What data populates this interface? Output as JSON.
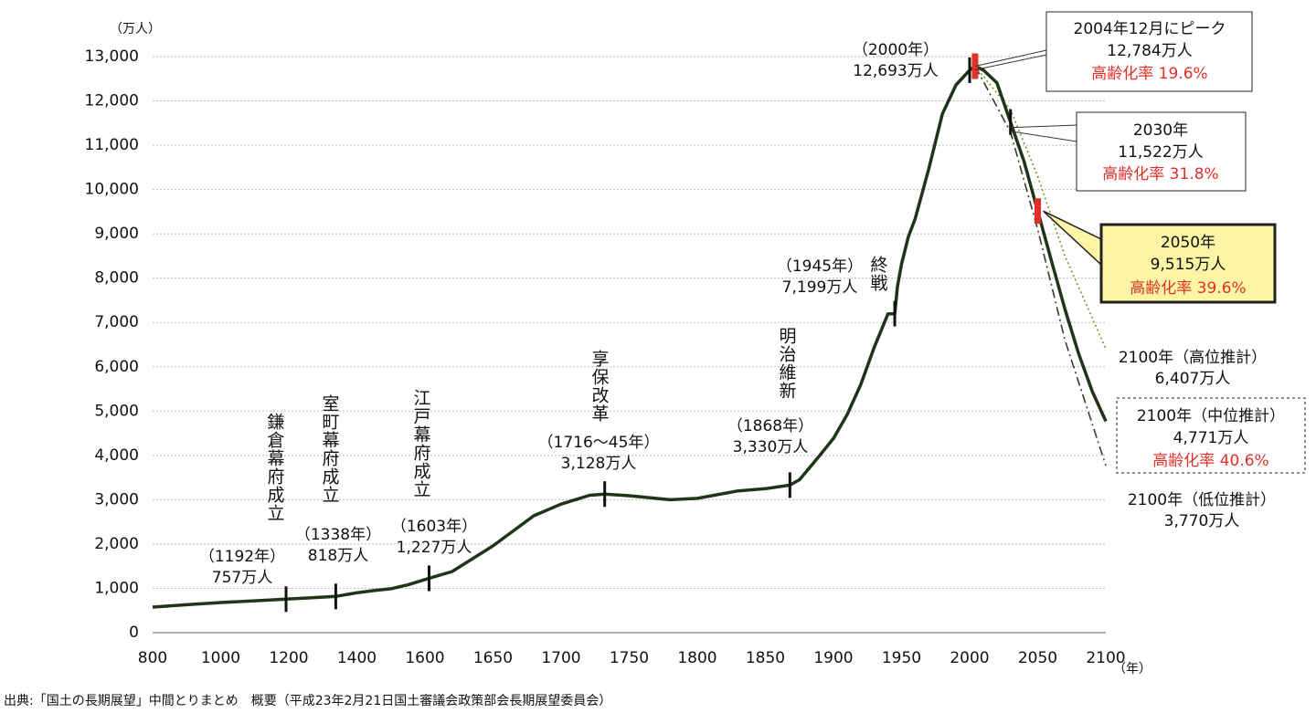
{
  "chart_data": {
    "type": "line",
    "y_unit": "（万人）",
    "x_unit": "（年）",
    "xlim": [
      800,
      2100
    ],
    "xticks": [
      800,
      1000,
      1200,
      1400,
      1600,
      1650,
      1700,
      1750,
      1800,
      1850,
      1900,
      1950,
      2000,
      2050,
      2100
    ],
    "ylim": [
      0,
      13000
    ],
    "yticks": [
      0,
      {
        "value": 1000,
        "label": "1,000"
      },
      {
        "value": 2000,
        "label": "2,000"
      },
      {
        "value": 3000,
        "label": "3,000"
      },
      {
        "value": 4000,
        "label": "4,000"
      },
      {
        "value": 5000,
        "label": "5,000"
      },
      {
        "value": 6000,
        "label": "6,000"
      },
      {
        "value": 7000,
        "label": "7,000"
      },
      {
        "value": 8000,
        "label": "8,000"
      },
      {
        "value": 9000,
        "label": "9,000"
      },
      {
        "value": 10000,
        "label": "10,000"
      },
      {
        "value": 11000,
        "label": "11,000"
      },
      {
        "value": 12000,
        "label": "12,000"
      },
      {
        "value": 13000,
        "label": "13,000"
      }
    ],
    "grid": true,
    "note_color": "#e0302a",
    "marker_color": "#111111",
    "peak_marker_color": "#e0302a",
    "series": [
      {
        "color": "#1e3518",
        "style": "solid",
        "x": [
          800,
          900,
          1000,
          1100,
          1192,
          1250,
          1338,
          1400,
          1450,
          1500,
          1550,
          1603,
          1620,
          1650,
          1680,
          1700,
          1721,
          1732,
          1750,
          1780,
          1800,
          1830,
          1850,
          1868,
          1875,
          1890,
          1900,
          1910,
          1920,
          1930,
          1940,
          1945,
          1947,
          1950,
          1955,
          1960,
          1970,
          1980,
          1990,
          2000,
          2004,
          2010,
          2020,
          2030,
          2040,
          2050,
          2060,
          2070,
          2080,
          2090,
          2100
        ],
        "values": [
          577,
          630,
          680,
          720,
          757,
          780,
          818,
          900,
          950,
          990,
          1080,
          1227,
          1380,
          1960,
          2640,
          2900,
          3100,
          3128,
          3090,
          3000,
          3030,
          3200,
          3250,
          3330,
          3450,
          4000,
          4385,
          4918,
          5596,
          6445,
          7193,
          7199,
          7810,
          8320,
          8928,
          9342,
          10467,
          11706,
          12361,
          12693,
          12784,
          12700,
          12410,
          11522,
          10630,
          9515,
          8400,
          7300,
          6300,
          5450,
          4771
        ]
      },
      {
        "color": "#8c8c2a",
        "style": "dotted",
        "x": [
          2004,
          2030,
          2050,
          2070,
          2100
        ],
        "values": [
          12784,
          11800,
          10300,
          8500,
          6407
        ]
      },
      {
        "color": "#3a3a2a",
        "style": "dashdot",
        "x": [
          2004,
          2030,
          2050,
          2070,
          2100
        ],
        "values": [
          12784,
          11300,
          9100,
          6600,
          3770
        ]
      }
    ],
    "annotations": [
      {
        "title": "鎌倉幕府成立",
        "lines": [
          "（1192年）",
          "757万人"
        ]
      },
      {
        "title": "室町幕府成立",
        "lines": [
          "（1338年）",
          "818万人"
        ]
      },
      {
        "title": "江戸幕府成立",
        "lines": [
          "（1603年）",
          "1,227万人"
        ]
      },
      {
        "title": "享保改革",
        "lines": [
          "（1716～45年）",
          "3,128万人"
        ]
      },
      {
        "title": "明治維新",
        "lines": [
          "（1868年）",
          "3,330万人"
        ]
      },
      {
        "title": "終戦",
        "lines": [
          "（1945年）",
          "7,199万人"
        ]
      },
      {
        "lines": [
          "（2000年）",
          "12,693万人"
        ]
      },
      {
        "lines": [
          "2004年12月にピーク",
          "12,784万人"
        ],
        "note": "高齢化率 19.6%"
      },
      {
        "lines": [
          "2030年",
          "11,522万人"
        ],
        "note": "高齢化率 31.8%"
      },
      {
        "lines": [
          "2050年",
          "9,515万人"
        ],
        "note": "高齢化率 39.6%"
      },
      {
        "lines": [
          "2100年（高位推計）",
          "6,407万人"
        ]
      },
      {
        "lines": [
          "2100年（中位推計）",
          "4,771万人"
        ],
        "note": "高齢化率 40.6%"
      },
      {
        "lines": [
          "2100年（低位推計）",
          "3,770万人"
        ]
      }
    ],
    "source": "出典:「国土の長期展望」中間とりまとめ　概要（平成23年2月21日国土審議会政策部会長期展望委員会）"
  }
}
